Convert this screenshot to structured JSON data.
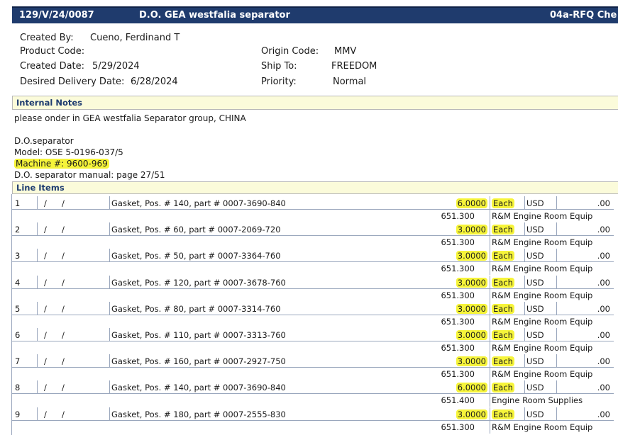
{
  "header": {
    "order_no": "129/V/24/0087",
    "title": "D.O. GEA westfalia separator",
    "form_code": "04a-RFQ Che"
  },
  "info": {
    "created_by_label": "Created By:",
    "created_by": "Cueno, Ferdinand T",
    "product_code_label": "Product Code:",
    "product_code": "",
    "created_date_label": "Created Date:",
    "created_date": "5/29/2024",
    "delivery_label": "Desired Delivery Date:",
    "delivery_date": "6/28/2024",
    "origin_code_label": "Origin Code:",
    "origin_code": "MMV",
    "ship_to_label": "Ship To:",
    "ship_to": "FREEDOM",
    "priority_label": "Priority:",
    "priority": "Normal"
  },
  "notes": {
    "section_label": "Internal Notes",
    "line1": "please onder in GEA westfalia Separator group, CHINA",
    "line2": "D.O.separator",
    "line3": "Model: OSE 5-0196-037/5",
    "line4": "Machine #: 9600-969",
    "line5": "D.O. separator manual: page 27/51"
  },
  "line_items": {
    "section_label": "Line Items",
    "items": [
      {
        "num": "1",
        "s1": "/",
        "s2": "/",
        "desc": "Gasket, Pos. # 140, part # 0007-3690-840",
        "qty": "6.0000",
        "uom": "Each",
        "currency": "USD",
        "amount": ".00",
        "code": "651.300",
        "category": "R&M Engine Room Equip"
      },
      {
        "num": "2",
        "s1": "/",
        "s2": "/",
        "desc": "Gasket, Pos. # 60, part # 0007-2069-720",
        "qty": "3.0000",
        "uom": "Each",
        "currency": "USD",
        "amount": ".00",
        "code": "651.300",
        "category": "R&M Engine Room Equip"
      },
      {
        "num": "3",
        "s1": "/",
        "s2": "/",
        "desc": "Gasket, Pos. # 50, part # 0007-3364-760",
        "qty": "3.0000",
        "uom": "Each",
        "currency": "USD",
        "amount": ".00",
        "code": "651.300",
        "category": "R&M Engine Room Equip"
      },
      {
        "num": "4",
        "s1": "/",
        "s2": "/",
        "desc": "Gasket, Pos. # 120, part # 0007-3678-760",
        "qty": "3.0000",
        "uom": "Each",
        "currency": "USD",
        "amount": ".00",
        "code": "651.300",
        "category": "R&M Engine Room Equip"
      },
      {
        "num": "5",
        "s1": "/",
        "s2": "/",
        "desc": "Gasket, Pos. # 80, part # 0007-3314-760",
        "qty": "3.0000",
        "uom": "Each",
        "currency": "USD",
        "amount": ".00",
        "code": "651.300",
        "category": "R&M Engine Room Equip"
      },
      {
        "num": "6",
        "s1": "/",
        "s2": "/",
        "desc": "Gasket, Pos. # 110, part # 0007-3313-760",
        "qty": "3.0000",
        "uom": "Each",
        "currency": "USD",
        "amount": ".00",
        "code": "651.300",
        "category": "R&M Engine Room Equip"
      },
      {
        "num": "7",
        "s1": "/",
        "s2": "/",
        "desc": "Gasket, Pos. # 160, part # 0007-2927-750",
        "qty": "3.0000",
        "uom": "Each",
        "currency": "USD",
        "amount": ".00",
        "code": "651.300",
        "category": "R&M Engine Room Equip"
      },
      {
        "num": "8",
        "s1": "/",
        "s2": "/",
        "desc": "Gasket, Pos. # 140, part # 0007-3690-840",
        "qty": "6.0000",
        "uom": "Each",
        "currency": "USD",
        "amount": ".00",
        "code": "651.400",
        "category": "Engine Room Supplies"
      },
      {
        "num": "9",
        "s1": "/",
        "s2": "/",
        "desc": "Gasket, Pos. # 180, part # 0007-2555-830",
        "qty": "3.0000",
        "uom": "Each",
        "currency": "USD",
        "amount": ".00",
        "code": "651.300",
        "category": "R&M Engine Room Equip"
      }
    ]
  }
}
